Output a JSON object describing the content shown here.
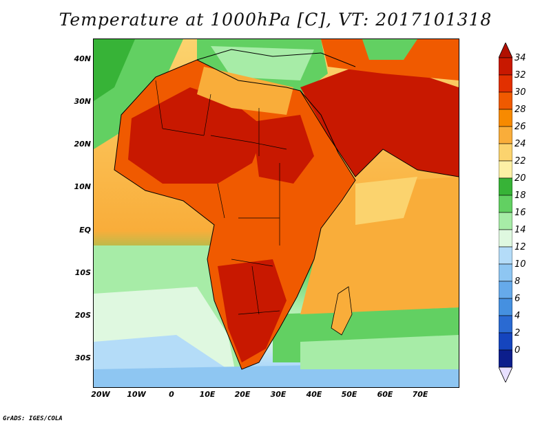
{
  "title": "Temperature at 1000hPa [C], VT: 2017101318",
  "credit": "GrADS: IGES/COLA",
  "lat_labels": [
    "40N",
    "30N",
    "20N",
    "10N",
    "EQ",
    "10S",
    "20S",
    "30S"
  ],
  "lon_labels": [
    "20W",
    "10W",
    "0",
    "10E",
    "20E",
    "30E",
    "40E",
    "50E",
    "60E",
    "70E"
  ],
  "colorbar": {
    "labels": [
      "34",
      "32",
      "30",
      "28",
      "26",
      "24",
      "22",
      "20",
      "18",
      "16",
      "14",
      "12",
      "10",
      "8",
      "6",
      "4",
      "2",
      "0"
    ],
    "colors": [
      "#c81800",
      "#e23000",
      "#f05a00",
      "#f78a00",
      "#f9ad3a",
      "#fbd36e",
      "#fdf0a6",
      "#37b337",
      "#62d062",
      "#a7eca7",
      "#dff8e0",
      "#b4dcf8",
      "#8ec6f2",
      "#66aaea",
      "#4590e0",
      "#2a6ad2",
      "#1545be",
      "#0c1e8c"
    ],
    "top_arrow_color": "#b11000",
    "bottom_arrow_color": "#e8e0ff"
  },
  "colors": {
    "ocean_south": "#9bcdf5",
    "ocean_north": "#62d062"
  }
}
